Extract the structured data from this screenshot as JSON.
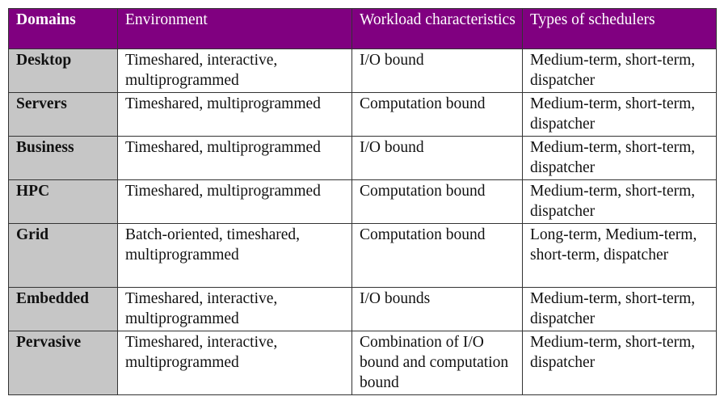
{
  "table": {
    "headers": [
      "Domains",
      "Environment",
      "Workload characteristics",
      "Types of schedulers"
    ],
    "rows": [
      {
        "domain": "Desktop",
        "environment": "Timeshared, interactive, multiprogrammed",
        "workload": "I/O bound",
        "schedulers": "Medium-term, short-term, dispatcher"
      },
      {
        "domain": "Servers",
        "environment": "Timeshared, multiprogrammed",
        "workload": "Computation bound",
        "schedulers": "Medium-term, short-term, dispatcher"
      },
      {
        "domain": "Business",
        "environment": "Timeshared, multiprogrammed",
        "workload": "I/O bound",
        "schedulers": "Medium-term, short-term, dispatcher"
      },
      {
        "domain": "HPC",
        "environment": "Timeshared, multiprogrammed",
        "workload": "Computation bound",
        "schedulers": "Medium-term, short-term, dispatcher"
      },
      {
        "domain": "Grid",
        "environment": "Batch-oriented, timeshared, multiprogrammed",
        "workload": "Computation bound",
        "schedulers": "Long-term, Medium-term, short-term, dispatcher"
      },
      {
        "domain": "Embedded",
        "environment": "Timeshared, interactive, multiprogrammed",
        "workload": "I/O bounds",
        "schedulers": "Medium-term, short-term, dispatcher"
      },
      {
        "domain": "Pervasive",
        "environment": "Timeshared, interactive, multiprogrammed",
        "workload": "Combination of I/O bound and computation bound",
        "schedulers": "Medium-term, short-term, dispatcher"
      }
    ]
  }
}
